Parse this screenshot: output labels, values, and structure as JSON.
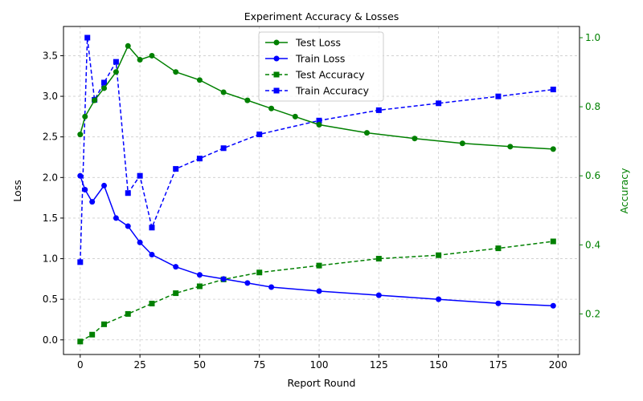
{
  "chart_data": {
    "type": "line",
    "title": "Experiment Accuracy & Losses",
    "xlabel": "Report Round",
    "ylabel_left": "Loss",
    "ylabel_right": "Accuracy",
    "xlim": [
      -7,
      209
    ],
    "ylim_left": [
      -0.18,
      3.86
    ],
    "ylim_right": [
      0.0825,
      1.0325
    ],
    "x_ticks": [
      0,
      25,
      50,
      75,
      100,
      125,
      150,
      175,
      200
    ],
    "x_tick_labels": [
      "0",
      "25",
      "50",
      "75",
      "100",
      "125",
      "150",
      "175",
      "200"
    ],
    "y_left_ticks": [
      0.0,
      0.5,
      1.0,
      1.5,
      2.0,
      2.5,
      3.0,
      3.5
    ],
    "y_left_tick_labels": [
      "0.0",
      "0.5",
      "1.0",
      "1.5",
      "2.0",
      "2.5",
      "3.0",
      "3.5"
    ],
    "y_right_ticks": [
      0.2,
      0.4,
      0.6,
      0.8,
      1.0
    ],
    "y_right_tick_labels": [
      "0.2",
      "0.4",
      "0.6",
      "0.8",
      "1.0"
    ],
    "grid": true,
    "legend_position": "upper-center",
    "colors": {
      "test": "#008000",
      "train": "#0000ff",
      "axis_right": "#008000"
    },
    "series": [
      {
        "name": "Test Loss",
        "axis": "left",
        "color": "#008000",
        "linestyle": "solid",
        "marker": "circle",
        "x": [
          0,
          2,
          6,
          10,
          15,
          20,
          25,
          30,
          40,
          50,
          60,
          70,
          80,
          90,
          100,
          120,
          140,
          160,
          180,
          198
        ],
        "y": [
          2.53,
          2.75,
          2.95,
          3.1,
          3.3,
          3.62,
          3.45,
          3.5,
          3.3,
          3.2,
          3.05,
          2.95,
          2.85,
          2.75,
          2.65,
          2.55,
          2.48,
          2.42,
          2.38,
          2.35
        ]
      },
      {
        "name": "Train Loss",
        "axis": "left",
        "color": "#0000ff",
        "linestyle": "solid",
        "marker": "circle",
        "x": [
          0,
          2,
          5,
          10,
          15,
          20,
          25,
          30,
          40,
          50,
          60,
          70,
          80,
          100,
          125,
          150,
          175,
          198
        ],
        "y": [
          2.02,
          1.85,
          1.7,
          1.9,
          1.5,
          1.4,
          1.2,
          1.05,
          0.9,
          0.8,
          0.75,
          0.7,
          0.65,
          0.6,
          0.55,
          0.5,
          0.45,
          0.42
        ]
      },
      {
        "name": "Test Accuracy",
        "axis": "right",
        "color": "#008000",
        "linestyle": "dashed",
        "marker": "square",
        "x": [
          0,
          5,
          10,
          20,
          30,
          40,
          50,
          60,
          75,
          100,
          125,
          150,
          175,
          198
        ],
        "y": [
          0.12,
          0.14,
          0.17,
          0.2,
          0.23,
          0.26,
          0.28,
          0.3,
          0.32,
          0.34,
          0.36,
          0.37,
          0.39,
          0.41
        ]
      },
      {
        "name": "Train Accuracy",
        "axis": "right",
        "color": "#0000ff",
        "linestyle": "dashed",
        "marker": "square",
        "x": [
          0,
          3,
          6,
          10,
          15,
          20,
          25,
          30,
          40,
          50,
          60,
          75,
          100,
          125,
          150,
          175,
          198
        ],
        "y": [
          0.35,
          1.0,
          0.82,
          0.87,
          0.93,
          0.55,
          0.6,
          0.45,
          0.62,
          0.65,
          0.68,
          0.72,
          0.76,
          0.79,
          0.81,
          0.83,
          0.85
        ]
      }
    ]
  }
}
